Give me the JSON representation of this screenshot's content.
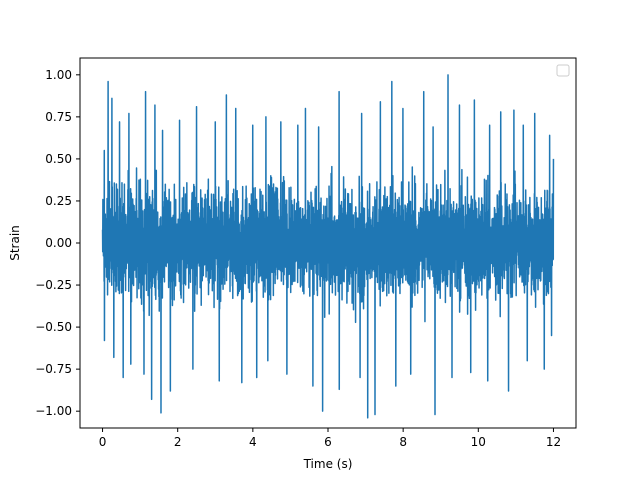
{
  "chart_data": {
    "type": "line",
    "title": "",
    "xlabel": "Time (s)",
    "ylabel": "Strain",
    "xlim": [
      -0.6,
      12.6
    ],
    "ylim": [
      -1.1,
      1.1
    ],
    "xticks": [
      0,
      2,
      4,
      6,
      8,
      10,
      12
    ],
    "yticks": [
      -1.0,
      -0.75,
      -0.5,
      -0.25,
      0.0,
      0.25,
      0.5,
      0.75,
      1.0
    ],
    "x_tick_labels": [
      "0",
      "2",
      "4",
      "6",
      "8",
      "10",
      "12"
    ],
    "y_tick_labels": [
      "−1.00",
      "−0.75",
      "−0.50",
      "−0.25",
      "0.00",
      "0.25",
      "0.50",
      "0.75",
      "1.00"
    ],
    "grid": false,
    "legend": {
      "placement": "top-right",
      "entries": []
    },
    "series": [
      {
        "color": "#1f77b4",
        "x_range": [
          0,
          12
        ],
        "band_upper": 0.5,
        "band_lower": -0.5,
        "peaks": [
          {
            "x": 0.05,
            "y": 0.55
          },
          {
            "x": 0.15,
            "y": 0.96
          },
          {
            "x": 0.25,
            "y": 0.86
          },
          {
            "x": 0.45,
            "y": 0.72
          },
          {
            "x": 0.7,
            "y": 0.77
          },
          {
            "x": 1.15,
            "y": 0.9
          },
          {
            "x": 1.4,
            "y": 0.82
          },
          {
            "x": 1.6,
            "y": 0.67
          },
          {
            "x": 2.05,
            "y": 0.73
          },
          {
            "x": 2.5,
            "y": 0.81
          },
          {
            "x": 3.0,
            "y": 0.72
          },
          {
            "x": 3.3,
            "y": 0.88
          },
          {
            "x": 3.55,
            "y": 0.8
          },
          {
            "x": 4.0,
            "y": 0.7
          },
          {
            "x": 4.35,
            "y": 0.75
          },
          {
            "x": 4.75,
            "y": 0.72
          },
          {
            "x": 5.2,
            "y": 0.7
          },
          {
            "x": 5.4,
            "y": 0.8
          },
          {
            "x": 5.75,
            "y": 0.69
          },
          {
            "x": 6.3,
            "y": 0.9
          },
          {
            "x": 6.9,
            "y": 0.77
          },
          {
            "x": 7.4,
            "y": 0.84
          },
          {
            "x": 7.7,
            "y": 0.96
          },
          {
            "x": 8.0,
            "y": 0.8
          },
          {
            "x": 8.55,
            "y": 0.9
          },
          {
            "x": 8.8,
            "y": 0.69
          },
          {
            "x": 9.2,
            "y": 1.0
          },
          {
            "x": 9.5,
            "y": 0.82
          },
          {
            "x": 9.9,
            "y": 0.85
          },
          {
            "x": 10.3,
            "y": 0.7
          },
          {
            "x": 10.6,
            "y": 0.78
          },
          {
            "x": 10.95,
            "y": 0.79
          },
          {
            "x": 11.2,
            "y": 0.7
          },
          {
            "x": 11.5,
            "y": 0.77
          },
          {
            "x": 11.9,
            "y": 0.64
          },
          {
            "x": 12.0,
            "y": 0.5
          }
        ],
        "troughs": [
          {
            "x": 0.05,
            "y": -0.58
          },
          {
            "x": 0.3,
            "y": -0.68
          },
          {
            "x": 0.55,
            "y": -0.8
          },
          {
            "x": 0.75,
            "y": -0.72
          },
          {
            "x": 1.1,
            "y": -0.78
          },
          {
            "x": 1.3,
            "y": -0.93
          },
          {
            "x": 1.55,
            "y": -1.01
          },
          {
            "x": 1.8,
            "y": -0.88
          },
          {
            "x": 2.4,
            "y": -0.75
          },
          {
            "x": 3.1,
            "y": -0.82
          },
          {
            "x": 3.7,
            "y": -0.83
          },
          {
            "x": 4.1,
            "y": -0.8
          },
          {
            "x": 4.4,
            "y": -0.7
          },
          {
            "x": 4.9,
            "y": -0.78
          },
          {
            "x": 5.6,
            "y": -0.85
          },
          {
            "x": 5.85,
            "y": -1.0
          },
          {
            "x": 6.3,
            "y": -0.87
          },
          {
            "x": 6.85,
            "y": -0.8
          },
          {
            "x": 7.05,
            "y": -1.04
          },
          {
            "x": 7.25,
            "y": -1.02
          },
          {
            "x": 7.8,
            "y": -0.85
          },
          {
            "x": 8.2,
            "y": -0.78
          },
          {
            "x": 8.85,
            "y": -1.02
          },
          {
            "x": 9.3,
            "y": -0.8
          },
          {
            "x": 9.8,
            "y": -0.77
          },
          {
            "x": 10.25,
            "y": -0.82
          },
          {
            "x": 10.8,
            "y": -0.88
          },
          {
            "x": 11.3,
            "y": -0.7
          },
          {
            "x": 11.75,
            "y": -0.75
          },
          {
            "x": 11.95,
            "y": -0.55
          }
        ]
      }
    ]
  }
}
